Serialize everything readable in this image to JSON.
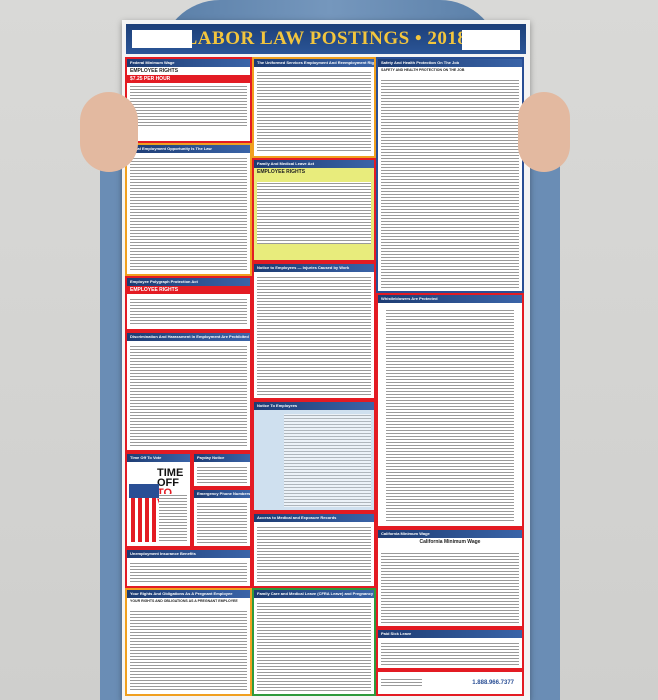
{
  "poster": {
    "title": "LABOR LAW POSTINGS • 2018",
    "phone": "1.888.966.7377",
    "sections": {
      "federal_min_wage": {
        "header": "Federal Minimum Wage",
        "sub": "EMPLOYEE RIGHTS",
        "rate": "$7.25 PER HOUR"
      },
      "userra": {
        "header": "The Uniformed Services Employment And Reemployment Rights Act"
      },
      "safety": {
        "header": "Safety And Health Protection On The Job",
        "sub": "SAFETY AND HEALTH PROTECTION ON THE JOB"
      },
      "eeo": {
        "header": "Equal Employment Opportunity Is The Law"
      },
      "fmla": {
        "header": "Family And Medical Leave Act",
        "sub": "EMPLOYEE RIGHTS"
      },
      "injuries": {
        "header": "Notice to Employees — Injuries Caused by Work"
      },
      "polygraph": {
        "header": "Employee Polygraph Protection Act",
        "sub": "EMPLOYEE RIGHTS"
      },
      "discrimination": {
        "header": "Discrimination And Harassment In Employment Are Prohibited By Law"
      },
      "whistleblowers": {
        "header": "Whistleblowers Are Protected"
      },
      "notice": {
        "header": "Notice To Employees"
      },
      "vote": {
        "header": "Time Off To Vote",
        "line1": "TIME OFF",
        "line2": "TO VOTE"
      },
      "payday": {
        "header": "Payday Notice"
      },
      "emergency": {
        "header": "Emergency Phone Numbers"
      },
      "medical_records": {
        "header": "Access to Medical and Exposure Records"
      },
      "unemployment": {
        "header": "Unemployment Insurance Benefits"
      },
      "ca_min_wage": {
        "header": "California Minimum Wage",
        "sub": "California Minimum Wage"
      },
      "pregnant": {
        "header": "Your Rights And Obligations As A Pregnant Employee",
        "sub": "YOUR RIGHTS AND OBLIGATIONS AS A PREGNANT EMPLOYEE"
      },
      "cfra": {
        "header": "Family Care and Medical Leave (CFRA Leave) and Pregnancy Disability Leave"
      },
      "paid_sick": {
        "header": "Paid Sick Leave"
      }
    }
  }
}
